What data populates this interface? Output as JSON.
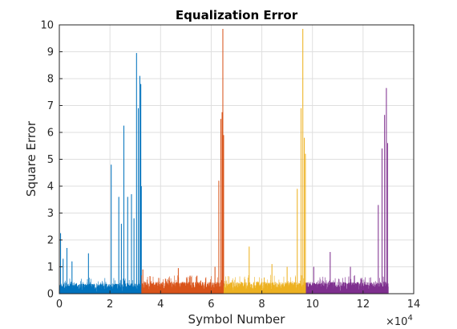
{
  "chart_data": {
    "type": "line",
    "title": "Equalization Error",
    "xlabel": "Symbol Number",
    "ylabel": "Square Error",
    "x_exponent_label": "×10",
    "x_exponent_power": "4",
    "xlim": [
      0,
      14
    ],
    "ylim": [
      0,
      10
    ],
    "x_unit_multiplier": 10000,
    "xticks": [
      "0",
      "2",
      "4",
      "6",
      "8",
      "10",
      "12",
      "14"
    ],
    "yticks": [
      "0",
      "1",
      "2",
      "3",
      "4",
      "5",
      "6",
      "7",
      "8",
      "9",
      "10"
    ],
    "grid": true,
    "series": [
      {
        "color": "#0072BD",
        "x_range": [
          0,
          3.25
        ],
        "baseline_band": [
          0.05,
          0.6
        ],
        "peaks": [
          {
            "x": 0.05,
            "y": 2.25
          },
          {
            "x": 0.15,
            "y": 1.3
          },
          {
            "x": 0.3,
            "y": 1.7
          },
          {
            "x": 0.5,
            "y": 1.2
          },
          {
            "x": 1.15,
            "y": 1.5
          },
          {
            "x": 2.05,
            "y": 4.8
          },
          {
            "x": 2.35,
            "y": 3.6
          },
          {
            "x": 2.45,
            "y": 2.6
          },
          {
            "x": 2.55,
            "y": 6.25
          },
          {
            "x": 2.7,
            "y": 3.6
          },
          {
            "x": 2.85,
            "y": 3.7
          },
          {
            "x": 2.95,
            "y": 2.8
          },
          {
            "x": 3.05,
            "y": 8.95
          },
          {
            "x": 3.12,
            "y": 6.9
          },
          {
            "x": 3.18,
            "y": 8.1
          },
          {
            "x": 3.22,
            "y": 7.8
          },
          {
            "x": 3.24,
            "y": 4.0
          }
        ]
      },
      {
        "color": "#D95319",
        "x_range": [
          3.25,
          6.5
        ],
        "baseline_band": [
          0.05,
          0.7
        ],
        "peaks": [
          {
            "x": 3.3,
            "y": 0.9
          },
          {
            "x": 4.7,
            "y": 0.95
          },
          {
            "x": 6.15,
            "y": 1.0
          },
          {
            "x": 6.3,
            "y": 4.2
          },
          {
            "x": 6.38,
            "y": 6.5
          },
          {
            "x": 6.43,
            "y": 6.75
          },
          {
            "x": 6.46,
            "y": 9.85
          },
          {
            "x": 6.49,
            "y": 5.9
          }
        ]
      },
      {
        "color": "#EDB120",
        "x_range": [
          6.5,
          9.75
        ],
        "baseline_band": [
          0.05,
          0.7
        ],
        "peaks": [
          {
            "x": 7.5,
            "y": 1.75
          },
          {
            "x": 8.4,
            "y": 1.1
          },
          {
            "x": 9.0,
            "y": 1.0
          },
          {
            "x": 9.4,
            "y": 3.9
          },
          {
            "x": 9.55,
            "y": 6.9
          },
          {
            "x": 9.62,
            "y": 9.85
          },
          {
            "x": 9.68,
            "y": 5.8
          },
          {
            "x": 9.72,
            "y": 5.2
          }
        ]
      },
      {
        "color": "#7E2F8E",
        "x_range": [
          9.75,
          13.0
        ],
        "baseline_band": [
          0.05,
          0.7
        ],
        "peaks": [
          {
            "x": 10.05,
            "y": 1.0
          },
          {
            "x": 10.7,
            "y": 1.55
          },
          {
            "x": 11.5,
            "y": 1.0
          },
          {
            "x": 12.6,
            "y": 3.3
          },
          {
            "x": 12.75,
            "y": 5.4
          },
          {
            "x": 12.85,
            "y": 6.65
          },
          {
            "x": 12.92,
            "y": 7.65
          },
          {
            "x": 12.97,
            "y": 5.6
          }
        ]
      }
    ]
  }
}
